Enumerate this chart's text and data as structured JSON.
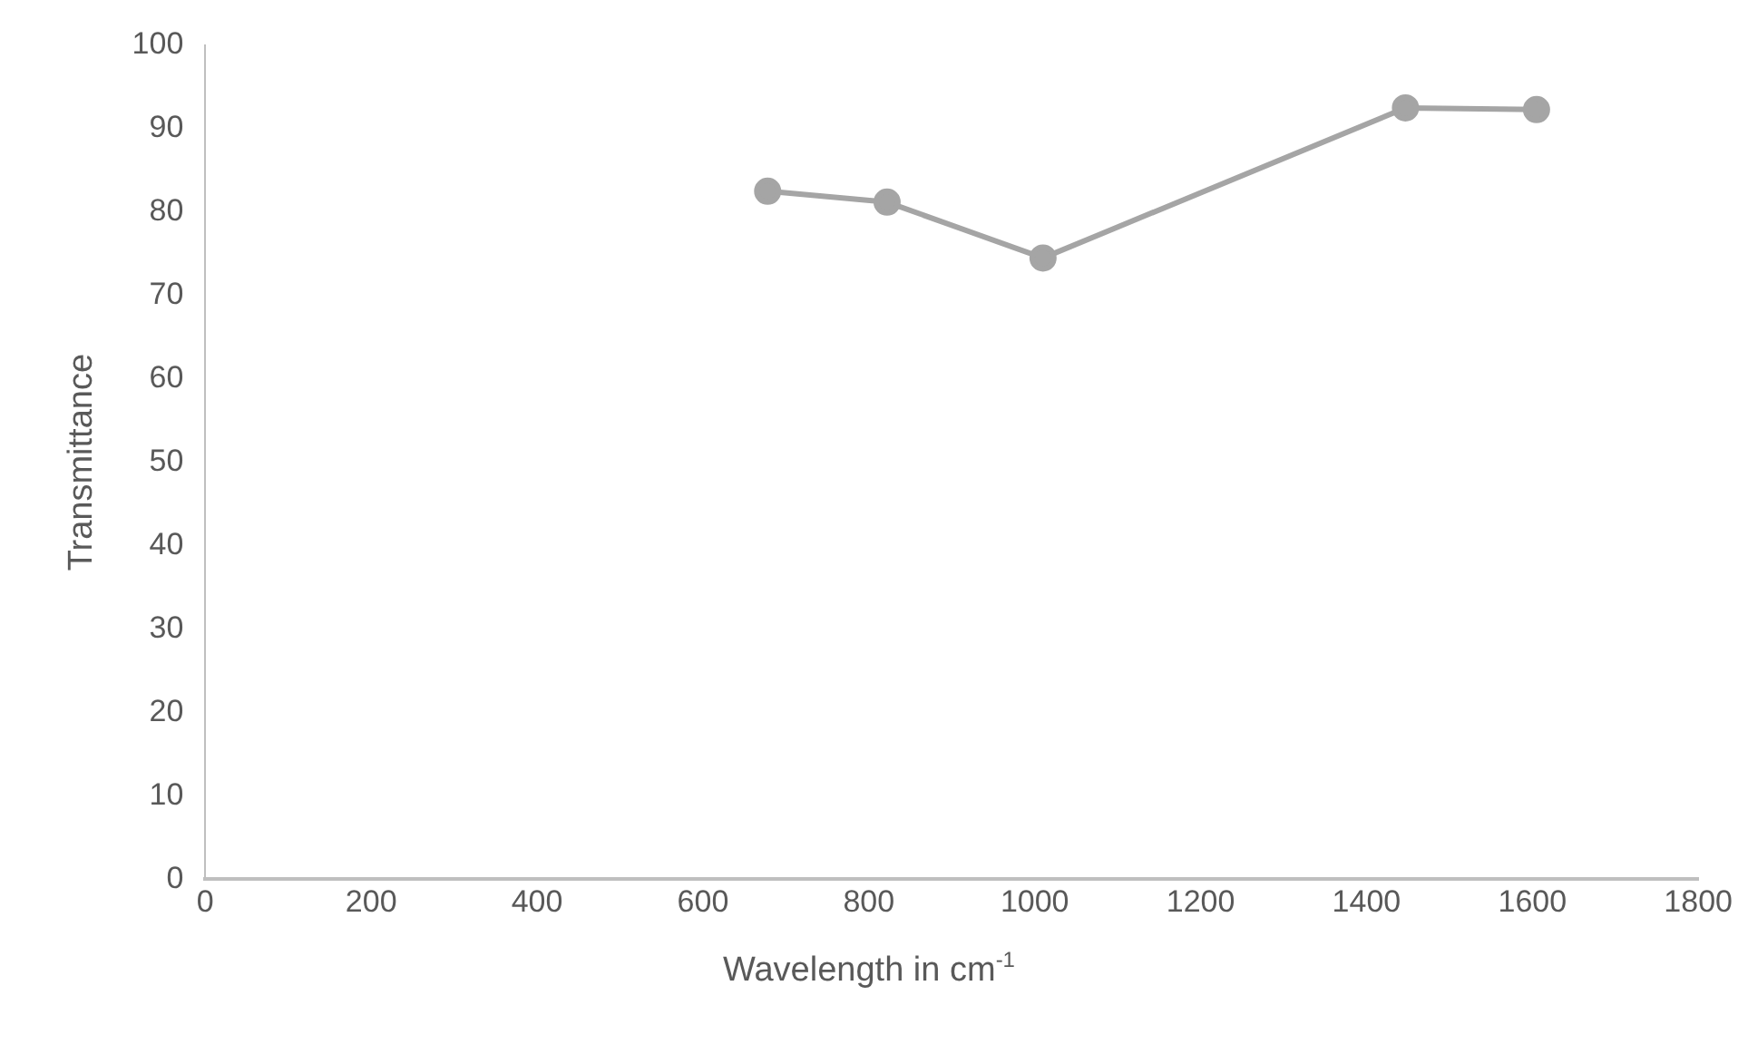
{
  "chart_data": {
    "type": "line",
    "xlabel": "Wavelength in cm$^{-1}$",
    "ylabel": "Transmittance",
    "x": [
      678,
      822,
      1010,
      1447,
      1605
    ],
    "series": [
      {
        "color": "#a5a5a5",
        "values": [
          82.5,
          81.2,
          74.5,
          92.5,
          92.3
        ]
      }
    ],
    "xlim": [
      0,
      1800
    ],
    "xticks": [
      0,
      200,
      400,
      600,
      800,
      1000,
      1200,
      1400,
      1600,
      1800
    ],
    "ylim": [
      0,
      100
    ],
    "yticks": [
      0,
      10,
      20,
      30,
      40,
      50,
      60,
      70,
      80,
      90,
      100
    ],
    "grid": false,
    "legend": false,
    "marker": "circle",
    "line_style": "solid"
  }
}
